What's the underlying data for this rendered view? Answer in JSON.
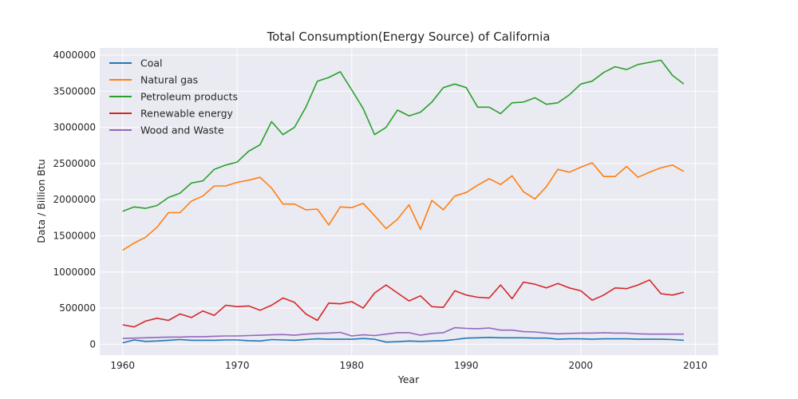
{
  "chart_data": {
    "type": "line",
    "title": "Total Consumption(Energy Source) of California",
    "xlabel": "Year",
    "ylabel": "Data / Billion Btu",
    "xlim": [
      1958,
      2012
    ],
    "ylim": [
      -150000,
      4100000
    ],
    "xticks": [
      1960,
      1970,
      1980,
      1990,
      2000,
      2010
    ],
    "yticks": [
      0,
      500000,
      1000000,
      1500000,
      2000000,
      2500000,
      3000000,
      3500000,
      4000000
    ],
    "grid": true,
    "legend_position": "upper-left",
    "x": [
      1960,
      1961,
      1962,
      1963,
      1964,
      1965,
      1966,
      1967,
      1968,
      1969,
      1970,
      1971,
      1972,
      1973,
      1974,
      1975,
      1976,
      1977,
      1978,
      1979,
      1980,
      1981,
      1982,
      1983,
      1984,
      1985,
      1986,
      1987,
      1988,
      1989,
      1990,
      1991,
      1992,
      1993,
      1994,
      1995,
      1996,
      1997,
      1998,
      1999,
      2000,
      2001,
      2002,
      2003,
      2004,
      2005,
      2006,
      2007,
      2008,
      2009
    ],
    "series": [
      {
        "name": "Coal",
        "color": "#1f77b4",
        "values": [
          20000,
          60000,
          40000,
          45000,
          55000,
          65000,
          55000,
          55000,
          55000,
          60000,
          60000,
          50000,
          45000,
          65000,
          60000,
          55000,
          65000,
          75000,
          70000,
          70000,
          70000,
          80000,
          70000,
          30000,
          35000,
          45000,
          40000,
          45000,
          50000,
          65000,
          85000,
          90000,
          95000,
          90000,
          90000,
          90000,
          85000,
          85000,
          70000,
          75000,
          75000,
          70000,
          75000,
          75000,
          75000,
          70000,
          70000,
          70000,
          65000,
          55000
        ]
      },
      {
        "name": "Natural gas",
        "color": "#ff7f0e",
        "values": [
          1300000,
          1400000,
          1480000,
          1620000,
          1820000,
          1820000,
          1980000,
          2050000,
          2190000,
          2190000,
          2240000,
          2270000,
          2310000,
          2160000,
          1940000,
          1940000,
          1860000,
          1870000,
          1650000,
          1900000,
          1890000,
          1950000,
          1780000,
          1600000,
          1730000,
          1930000,
          1590000,
          1990000,
          1860000,
          2050000,
          2100000,
          2200000,
          2290000,
          2210000,
          2330000,
          2110000,
          2010000,
          2180000,
          2420000,
          2380000,
          2450000,
          2510000,
          2320000,
          2320000,
          2460000,
          2310000,
          2380000,
          2440000,
          2480000,
          2390000
        ]
      },
      {
        "name": "Petroleum products",
        "color": "#2ca02c",
        "values": [
          1840000,
          1900000,
          1880000,
          1920000,
          2030000,
          2090000,
          2230000,
          2260000,
          2420000,
          2480000,
          2520000,
          2670000,
          2760000,
          3080000,
          2900000,
          3000000,
          3280000,
          3640000,
          3690000,
          3770000,
          3520000,
          3260000,
          2900000,
          3000000,
          3240000,
          3160000,
          3210000,
          3350000,
          3550000,
          3600000,
          3550000,
          3280000,
          3280000,
          3190000,
          3340000,
          3350000,
          3410000,
          3320000,
          3340000,
          3450000,
          3600000,
          3640000,
          3760000,
          3840000,
          3800000,
          3870000,
          3900000,
          3930000,
          3720000,
          3600000
        ]
      },
      {
        "name": "Renewable energy",
        "color": "#d62728",
        "values": [
          270000,
          240000,
          320000,
          360000,
          330000,
          420000,
          370000,
          460000,
          400000,
          540000,
          520000,
          530000,
          470000,
          540000,
          640000,
          580000,
          420000,
          330000,
          570000,
          560000,
          590000,
          500000,
          710000,
          820000,
          710000,
          600000,
          670000,
          520000,
          510000,
          740000,
          680000,
          650000,
          640000,
          820000,
          630000,
          860000,
          830000,
          780000,
          840000,
          780000,
          740000,
          610000,
          680000,
          780000,
          770000,
          820000,
          890000,
          700000,
          680000,
          720000
        ]
      },
      {
        "name": "Wood and Waste",
        "color": "#9467bd",
        "values": [
          80000,
          85000,
          90000,
          95000,
          100000,
          100000,
          105000,
          105000,
          110000,
          115000,
          115000,
          120000,
          125000,
          130000,
          135000,
          125000,
          140000,
          150000,
          155000,
          165000,
          115000,
          130000,
          120000,
          140000,
          160000,
          160000,
          125000,
          150000,
          160000,
          230000,
          220000,
          215000,
          225000,
          195000,
          195000,
          175000,
          170000,
          155000,
          145000,
          150000,
          155000,
          155000,
          160000,
          155000,
          155000,
          145000,
          140000,
          140000,
          140000,
          140000
        ]
      }
    ]
  }
}
